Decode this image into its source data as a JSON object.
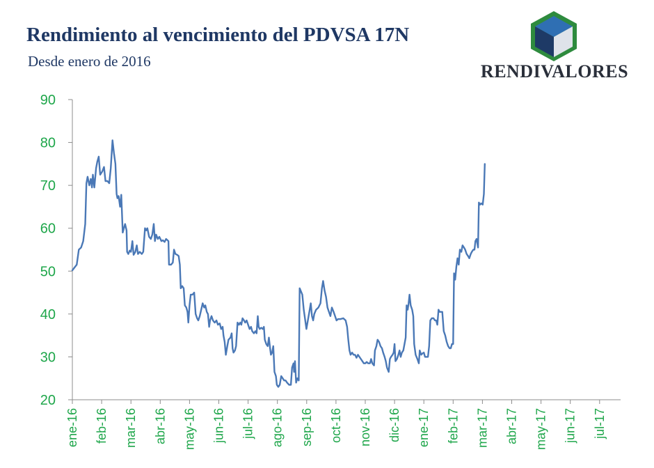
{
  "header": {
    "title": "Rendimiento al vencimiento del PDVSA 17N",
    "subtitle": "Desde enero de 2016"
  },
  "logo": {
    "text": "RENDIVALORES",
    "colors": {
      "frame": "#2e8b3e",
      "top": "#2f6fb3",
      "left": "#1e3a66",
      "right": "#dfe3ea"
    }
  },
  "colors": {
    "line": "#4a78b6",
    "axis": "#8c8c8c",
    "tick_text": "#1ea64a",
    "title": "#1f3864"
  },
  "chart_data": {
    "type": "line",
    "title": "Rendimiento al vencimiento del PDVSA 17N",
    "subtitle": "Desde enero de 2016",
    "ylim": [
      20,
      90
    ],
    "yticks": [
      20,
      30,
      40,
      50,
      60,
      70,
      80,
      90
    ],
    "grid": false,
    "legend": "none",
    "x_ticks": [
      "ene-16",
      "feb-16",
      "mar-16",
      "abr-16",
      "may-16",
      "jun-16",
      "jul-16",
      "ago-16",
      "sep-16",
      "oct-16",
      "nov-16",
      "dic-16",
      "ene-17",
      "feb-17",
      "mar-17",
      "abr-17",
      "may-17",
      "jun-17",
      "jul-17"
    ],
    "x_range_months": [
      0,
      19.2
    ],
    "x_note": "x values are months since the first tick (ene-16 = 0)",
    "series": [
      {
        "points": [
          [
            0.0,
            50.2
          ],
          [
            0.07,
            50.8
          ],
          [
            0.15,
            51.5
          ],
          [
            0.22,
            55.0
          ],
          [
            0.3,
            55.5
          ],
          [
            0.37,
            57.0
          ],
          [
            0.44,
            61.0
          ],
          [
            0.48,
            70.5
          ],
          [
            0.52,
            72.0
          ],
          [
            0.58,
            70.0
          ],
          [
            0.63,
            71.5
          ],
          [
            0.67,
            69.5
          ],
          [
            0.7,
            72.5
          ],
          [
            0.75,
            69.5
          ],
          [
            0.81,
            74.0
          ],
          [
            0.85,
            75.5
          ],
          [
            0.9,
            76.7
          ],
          [
            0.95,
            72.5
          ],
          [
            1.02,
            73.2
          ],
          [
            1.08,
            74.3
          ],
          [
            1.13,
            71.0
          ],
          [
            1.2,
            71.0
          ],
          [
            1.26,
            70.5
          ],
          [
            1.31,
            74.0
          ],
          [
            1.37,
            80.5
          ],
          [
            1.42,
            77.5
          ],
          [
            1.47,
            75.0
          ],
          [
            1.51,
            68.0
          ],
          [
            1.54,
            67.0
          ],
          [
            1.58,
            67.5
          ],
          [
            1.63,
            65.0
          ],
          [
            1.67,
            67.8
          ],
          [
            1.72,
            59.0
          ],
          [
            1.76,
            60.0
          ],
          [
            1.8,
            61.0
          ],
          [
            1.85,
            59.5
          ],
          [
            1.87,
            54.5
          ],
          [
            1.91,
            54.0
          ],
          [
            1.96,
            54.8
          ],
          [
            2.0,
            54.5
          ],
          [
            2.05,
            57.0
          ],
          [
            2.09,
            53.8
          ],
          [
            2.15,
            54.5
          ],
          [
            2.2,
            56.0
          ],
          [
            2.24,
            54.0
          ],
          [
            2.3,
            54.5
          ],
          [
            2.37,
            54.0
          ],
          [
            2.42,
            54.5
          ],
          [
            2.48,
            60.0
          ],
          [
            2.52,
            59.5
          ],
          [
            2.56,
            60.0
          ],
          [
            2.62,
            58.0
          ],
          [
            2.68,
            57.5
          ],
          [
            2.73,
            58.5
          ],
          [
            2.78,
            61.0
          ],
          [
            2.82,
            57.0
          ],
          [
            2.86,
            58.5
          ],
          [
            2.92,
            57.5
          ],
          [
            2.97,
            58.0
          ],
          [
            3.04,
            57.0
          ],
          [
            3.09,
            57.2
          ],
          [
            3.15,
            56.8
          ],
          [
            3.2,
            57.5
          ],
          [
            3.25,
            57.2
          ],
          [
            3.28,
            57.0
          ],
          [
            3.3,
            51.5
          ],
          [
            3.37,
            51.5
          ],
          [
            3.43,
            52.0
          ],
          [
            3.47,
            55.0
          ],
          [
            3.52,
            54.0
          ],
          [
            3.58,
            53.8
          ],
          [
            3.63,
            53.5
          ],
          [
            3.67,
            51.5
          ],
          [
            3.7,
            46.0
          ],
          [
            3.75,
            46.5
          ],
          [
            3.8,
            46.0
          ],
          [
            3.84,
            42.0
          ],
          [
            3.89,
            41.5
          ],
          [
            3.93,
            40.5
          ],
          [
            3.96,
            38.0
          ],
          [
            4.0,
            42.0
          ],
          [
            4.04,
            44.5
          ],
          [
            4.1,
            44.5
          ],
          [
            4.16,
            45.0
          ],
          [
            4.21,
            40.0
          ],
          [
            4.26,
            39.0
          ],
          [
            4.3,
            38.5
          ],
          [
            4.35,
            39.5
          ],
          [
            4.4,
            41.0
          ],
          [
            4.45,
            42.5
          ],
          [
            4.5,
            41.5
          ],
          [
            4.54,
            42.0
          ],
          [
            4.59,
            40.5
          ],
          [
            4.63,
            40.0
          ],
          [
            4.67,
            37.0
          ],
          [
            4.7,
            38.5
          ],
          [
            4.75,
            39.5
          ],
          [
            4.8,
            38.5
          ],
          [
            4.86,
            38.0
          ],
          [
            4.92,
            38.5
          ],
          [
            4.97,
            37.5
          ],
          [
            5.03,
            37.8
          ],
          [
            5.08,
            36.5
          ],
          [
            5.13,
            37.0
          ],
          [
            5.16,
            35.0
          ],
          [
            5.2,
            33.5
          ],
          [
            5.24,
            30.5
          ],
          [
            5.29,
            32.5
          ],
          [
            5.33,
            34.0
          ],
          [
            5.4,
            34.5
          ],
          [
            5.44,
            35.5
          ],
          [
            5.47,
            32.0
          ],
          [
            5.5,
            31.0
          ],
          [
            5.55,
            31.5
          ],
          [
            5.59,
            32.5
          ],
          [
            5.64,
            38.0
          ],
          [
            5.69,
            37.5
          ],
          [
            5.73,
            38.0
          ],
          [
            5.77,
            37.5
          ],
          [
            5.81,
            39.0
          ],
          [
            5.86,
            38.5
          ],
          [
            5.9,
            38.0
          ],
          [
            5.95,
            38.5
          ],
          [
            6.0,
            37.5
          ],
          [
            6.05,
            36.5
          ],
          [
            6.1,
            37.0
          ],
          [
            6.14,
            36.0
          ],
          [
            6.2,
            35.5
          ],
          [
            6.25,
            36.0
          ],
          [
            6.29,
            35.5
          ],
          [
            6.33,
            39.5
          ],
          [
            6.36,
            37.0
          ],
          [
            6.4,
            36.5
          ],
          [
            6.45,
            36.8
          ],
          [
            6.5,
            36.5
          ],
          [
            6.54,
            37.0
          ],
          [
            6.57,
            34.0
          ],
          [
            6.62,
            33.0
          ],
          [
            6.67,
            32.5
          ],
          [
            6.71,
            34.5
          ],
          [
            6.75,
            32.0
          ],
          [
            6.78,
            30.5
          ],
          [
            6.82,
            31.0
          ],
          [
            6.86,
            32.5
          ],
          [
            6.9,
            26.5
          ],
          [
            6.95,
            25.5
          ],
          [
            6.98,
            23.5
          ],
          [
            7.03,
            23.0
          ],
          [
            7.08,
            23.5
          ],
          [
            7.13,
            25.5
          ],
          [
            7.18,
            25.0
          ],
          [
            7.23,
            24.5
          ],
          [
            7.28,
            24.5
          ],
          [
            7.33,
            24.0
          ],
          [
            7.4,
            23.5
          ],
          [
            7.46,
            23.5
          ],
          [
            7.5,
            27.5
          ],
          [
            7.55,
            28.5
          ],
          [
            7.57,
            26.5
          ],
          [
            7.6,
            29.0
          ],
          [
            7.64,
            24.0
          ],
          [
            7.68,
            25.0
          ],
          [
            7.73,
            24.5
          ],
          [
            7.76,
            46.0
          ],
          [
            7.79,
            45.5
          ],
          [
            7.85,
            44.5
          ],
          [
            7.9,
            41.0
          ],
          [
            7.94,
            39.0
          ],
          [
            7.99,
            36.5
          ],
          [
            8.04,
            38.5
          ],
          [
            8.09,
            40.5
          ],
          [
            8.14,
            42.5
          ],
          [
            8.18,
            39.5
          ],
          [
            8.22,
            38.5
          ],
          [
            8.26,
            40.0
          ],
          [
            8.32,
            41.0
          ],
          [
            8.4,
            41.5
          ],
          [
            8.47,
            42.5
          ],
          [
            8.52,
            46.0
          ],
          [
            8.56,
            47.7
          ],
          [
            8.61,
            45.5
          ],
          [
            8.66,
            44.0
          ],
          [
            8.71,
            41.5
          ],
          [
            8.76,
            40.5
          ],
          [
            8.81,
            39.5
          ],
          [
            8.86,
            41.5
          ],
          [
            8.92,
            40.5
          ],
          [
            8.97,
            39.5
          ],
          [
            9.02,
            38.5
          ],
          [
            9.07,
            38.8
          ],
          [
            9.15,
            38.8
          ],
          [
            9.25,
            39.0
          ],
          [
            9.33,
            38.5
          ],
          [
            9.38,
            37.0
          ],
          [
            9.42,
            34.0
          ],
          [
            9.46,
            31.5
          ],
          [
            9.5,
            30.5
          ],
          [
            9.55,
            31.0
          ],
          [
            9.6,
            30.5
          ],
          [
            9.65,
            30.5
          ],
          [
            9.7,
            29.8
          ],
          [
            9.75,
            30.5
          ],
          [
            9.8,
            30.0
          ],
          [
            9.85,
            29.5
          ],
          [
            9.9,
            29.0
          ],
          [
            9.95,
            28.5
          ],
          [
            10.0,
            28.5
          ],
          [
            10.05,
            28.8
          ],
          [
            10.1,
            28.5
          ],
          [
            10.16,
            28.5
          ],
          [
            10.2,
            29.5
          ],
          [
            10.24,
            28.5
          ],
          [
            10.3,
            28.0
          ],
          [
            10.33,
            31.5
          ],
          [
            10.38,
            32.5
          ],
          [
            10.42,
            34.0
          ],
          [
            10.47,
            33.5
          ],
          [
            10.52,
            32.5
          ],
          [
            10.57,
            32.0
          ],
          [
            10.61,
            31.0
          ],
          [
            10.66,
            30.0
          ],
          [
            10.7,
            29.0
          ],
          [
            10.74,
            27.5
          ],
          [
            10.8,
            26.5
          ],
          [
            10.84,
            29.5
          ],
          [
            10.88,
            30.0
          ],
          [
            10.93,
            30.5
          ],
          [
            10.97,
            31.0
          ],
          [
            11.0,
            33.0
          ],
          [
            11.03,
            29.0
          ],
          [
            11.08,
            29.5
          ],
          [
            11.13,
            30.5
          ],
          [
            11.17,
            31.5
          ],
          [
            11.21,
            30.0
          ],
          [
            11.25,
            31.0
          ],
          [
            11.3,
            31.5
          ],
          [
            11.34,
            33.0
          ],
          [
            11.38,
            34.5
          ],
          [
            11.41,
            42.0
          ],
          [
            11.45,
            41.0
          ],
          [
            11.48,
            42.5
          ],
          [
            11.51,
            44.5
          ],
          [
            11.55,
            42.0
          ],
          [
            11.6,
            41.0
          ],
          [
            11.64,
            39.5
          ],
          [
            11.67,
            33.0
          ],
          [
            11.72,
            30.5
          ],
          [
            11.78,
            29.5
          ],
          [
            11.83,
            28.5
          ],
          [
            11.86,
            31.5
          ],
          [
            11.91,
            30.5
          ],
          [
            11.95,
            30.8
          ],
          [
            12.0,
            31.0
          ],
          [
            12.04,
            30.0
          ],
          [
            12.09,
            30.0
          ],
          [
            12.14,
            30.0
          ],
          [
            12.18,
            32.5
          ],
          [
            12.22,
            38.5
          ],
          [
            12.27,
            39.0
          ],
          [
            12.33,
            39.0
          ],
          [
            12.38,
            38.5
          ],
          [
            12.42,
            38.5
          ],
          [
            12.46,
            37.5
          ],
          [
            12.5,
            41.0
          ],
          [
            12.54,
            40.5
          ],
          [
            12.58,
            40.5
          ],
          [
            12.63,
            40.5
          ],
          [
            12.68,
            36.0
          ],
          [
            12.73,
            35.0
          ],
          [
            12.78,
            33.5
          ],
          [
            12.83,
            32.5
          ],
          [
            12.88,
            32.0
          ],
          [
            12.92,
            32.0
          ],
          [
            12.96,
            33.0
          ],
          [
            13.0,
            33.0
          ],
          [
            13.03,
            49.5
          ],
          [
            13.07,
            48.0
          ],
          [
            13.11,
            51.0
          ],
          [
            13.15,
            53.0
          ],
          [
            13.19,
            51.5
          ],
          [
            13.23,
            55.0
          ],
          [
            13.28,
            54.5
          ],
          [
            13.32,
            56.0
          ],
          [
            13.37,
            55.5
          ],
          [
            13.41,
            55.0
          ],
          [
            13.46,
            54.0
          ],
          [
            13.51,
            53.5
          ],
          [
            13.55,
            53.0
          ],
          [
            13.6,
            54.0
          ],
          [
            13.64,
            54.5
          ],
          [
            13.69,
            55.0
          ],
          [
            13.73,
            55.0
          ],
          [
            13.76,
            57.0
          ],
          [
            13.8,
            57.5
          ],
          [
            13.85,
            55.5
          ],
          [
            13.88,
            66.0
          ],
          [
            13.92,
            65.5
          ],
          [
            13.96,
            65.8
          ],
          [
            14.01,
            65.5
          ],
          [
            14.05,
            68.0
          ],
          [
            14.08,
            75.0
          ]
        ]
      }
    ]
  }
}
